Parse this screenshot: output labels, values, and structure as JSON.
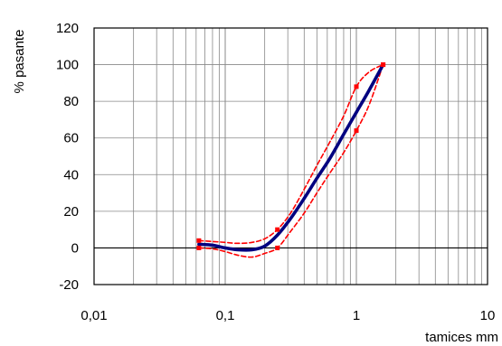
{
  "chart_data": {
    "type": "line",
    "title": "",
    "xlabel": "tamices mm",
    "ylabel": "% pasante",
    "x_scale": "log",
    "xlim": [
      0.01,
      10
    ],
    "ylim": [
      -20,
      120
    ],
    "x_tick_labels": [
      "0,01",
      "0,1",
      "1",
      "10"
    ],
    "y_tick_labels": [
      "-20",
      "0",
      "20",
      "40",
      "60",
      "80",
      "100",
      "120"
    ],
    "grid": true,
    "series": [
      {
        "color": "#000080",
        "style": "solid",
        "x": [
          0.063,
          0.08,
          0.1,
          0.125,
          0.16,
          0.2,
          0.25,
          0.315,
          0.4,
          0.5,
          0.63,
          0.8,
          1.0,
          1.25,
          1.6
        ],
        "y": [
          2,
          1.5,
          0,
          -1,
          -1,
          1,
          7,
          16,
          27,
          38,
          49,
          62,
          74,
          86,
          100
        ]
      },
      {
        "color": "#ff0000",
        "style": "dashed",
        "markers": true,
        "x": [
          0.063,
          0.08,
          0.1,
          0.125,
          0.16,
          0.2,
          0.25,
          0.315,
          0.4,
          0.5,
          0.63,
          0.8,
          1.0,
          1.25,
          1.6
        ],
        "y": [
          4,
          3.5,
          3,
          2.5,
          3,
          5,
          10,
          19,
          32,
          45,
          58,
          72,
          88,
          96,
          100
        ]
      },
      {
        "color": "#ff0000",
        "style": "dashed",
        "markers": true,
        "x": [
          0.063,
          0.08,
          0.1,
          0.125,
          0.16,
          0.2,
          0.25,
          0.315,
          0.4,
          0.5,
          0.63,
          0.8,
          1.0,
          1.25,
          1.6
        ],
        "y": [
          0,
          -0.5,
          -2,
          -4,
          -5,
          -3,
          0,
          9,
          19,
          30,
          41,
          52,
          64,
          78,
          100
        ]
      }
    ]
  }
}
